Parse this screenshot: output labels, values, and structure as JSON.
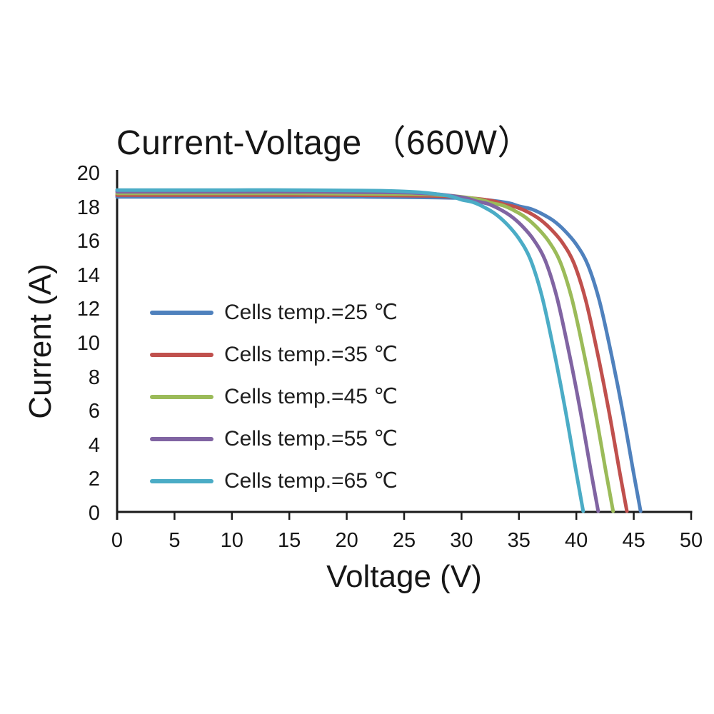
{
  "title": "Current-Voltage （660W）",
  "chart_data": {
    "type": "line",
    "title": "Current-Voltage （660W）",
    "xlabel": "Voltage (V)",
    "ylabel": "Current (A)",
    "xlim": [
      0,
      50
    ],
    "ylim": [
      0,
      20
    ],
    "x_ticks": [
      0,
      5,
      10,
      15,
      20,
      25,
      30,
      35,
      40,
      45,
      50
    ],
    "y_ticks": [
      0,
      2,
      4,
      6,
      8,
      10,
      12,
      14,
      16,
      18,
      20
    ],
    "grid": false,
    "legend_position": "inside-left",
    "axis_color": "#1a1a1a",
    "series": [
      {
        "name": "Cells temp.=25 ℃",
        "color": "#4F81BD",
        "isc_A": 18.5,
        "voc_V": 45.6,
        "points": [
          [
            0,
            18.5
          ],
          [
            5,
            18.5
          ],
          [
            10,
            18.5
          ],
          [
            15,
            18.5
          ],
          [
            20,
            18.5
          ],
          [
            25,
            18.48
          ],
          [
            28,
            18.46
          ],
          [
            30,
            18.42
          ],
          [
            32,
            18.33
          ],
          [
            34,
            18.15
          ],
          [
            35,
            17.95
          ],
          [
            36,
            17.8
          ],
          [
            37,
            17.5
          ],
          [
            38,
            17.1
          ],
          [
            39,
            16.5
          ],
          [
            40,
            15.7
          ],
          [
            41,
            14.5
          ],
          [
            42,
            12.4
          ],
          [
            43,
            9.4
          ],
          [
            44,
            6.0
          ],
          [
            45,
            2.2
          ],
          [
            45.6,
            0
          ]
        ]
      },
      {
        "name": "Cells temp.=35 ℃",
        "color": "#C0504D",
        "isc_A": 18.6,
        "voc_V": 44.4,
        "points": [
          [
            0,
            18.6
          ],
          [
            5,
            18.6
          ],
          [
            10,
            18.6
          ],
          [
            15,
            18.6
          ],
          [
            20,
            18.6
          ],
          [
            24,
            18.58
          ],
          [
            26.8,
            18.56
          ],
          [
            28.8,
            18.52
          ],
          [
            30.8,
            18.43
          ],
          [
            32.8,
            18.25
          ],
          [
            33.8,
            18.04
          ],
          [
            34.8,
            17.89
          ],
          [
            35.8,
            17.6
          ],
          [
            36.8,
            17.19
          ],
          [
            37.8,
            16.59
          ],
          [
            38.8,
            15.79
          ],
          [
            39.8,
            14.58
          ],
          [
            40.8,
            12.46
          ],
          [
            41.8,
            9.45
          ],
          [
            42.8,
            6.03
          ],
          [
            43.8,
            2.21
          ],
          [
            44.4,
            0
          ]
        ]
      },
      {
        "name": "Cells temp.=45 ℃",
        "color": "#9BBB59",
        "isc_A": 18.7,
        "voc_V": 43.2,
        "points": [
          [
            0,
            18.7
          ],
          [
            5,
            18.7
          ],
          [
            10,
            18.7
          ],
          [
            15,
            18.7
          ],
          [
            20,
            18.68
          ],
          [
            23,
            18.67
          ],
          [
            25.6,
            18.66
          ],
          [
            27.6,
            18.62
          ],
          [
            29.6,
            18.53
          ],
          [
            31.6,
            18.34
          ],
          [
            32.6,
            18.14
          ],
          [
            33.6,
            17.99
          ],
          [
            34.6,
            17.69
          ],
          [
            35.6,
            17.28
          ],
          [
            36.6,
            16.68
          ],
          [
            37.6,
            15.88
          ],
          [
            38.6,
            14.66
          ],
          [
            39.6,
            12.53
          ],
          [
            40.6,
            9.5
          ],
          [
            41.6,
            6.06
          ],
          [
            42.6,
            2.23
          ],
          [
            43.2,
            0
          ]
        ]
      },
      {
        "name": "Cells temp.=55 ℃",
        "color": "#8064A2",
        "isc_A": 18.8,
        "voc_V": 41.9,
        "points": [
          [
            0,
            18.8
          ],
          [
            5,
            18.8
          ],
          [
            10,
            18.8
          ],
          [
            15,
            18.8
          ],
          [
            20,
            18.78
          ],
          [
            22,
            18.77
          ],
          [
            24.3,
            18.76
          ],
          [
            26.3,
            18.72
          ],
          [
            28.3,
            18.63
          ],
          [
            30.3,
            18.44
          ],
          [
            31.3,
            18.24
          ],
          [
            32.3,
            18.09
          ],
          [
            33.3,
            17.78
          ],
          [
            34.3,
            17.37
          ],
          [
            35.3,
            16.77
          ],
          [
            36.3,
            15.96
          ],
          [
            37.3,
            14.74
          ],
          [
            38.3,
            12.6
          ],
          [
            39.3,
            9.55
          ],
          [
            40.3,
            6.09
          ],
          [
            41.3,
            2.24
          ],
          [
            41.9,
            0
          ]
        ]
      },
      {
        "name": "Cells temp.=65 ℃",
        "color": "#4BACC6",
        "isc_A": 18.9,
        "voc_V": 40.6,
        "points": [
          [
            0,
            18.9
          ],
          [
            5,
            18.9
          ],
          [
            10,
            18.9
          ],
          [
            15,
            18.9
          ],
          [
            20,
            18.88
          ],
          [
            23,
            18.86
          ],
          [
            25,
            18.82
          ],
          [
            27,
            18.73
          ],
          [
            29,
            18.54
          ],
          [
            30,
            18.33
          ],
          [
            31,
            18.18
          ],
          [
            32,
            17.88
          ],
          [
            33,
            17.47
          ],
          [
            34,
            16.86
          ],
          [
            35,
            16.04
          ],
          [
            36,
            14.82
          ],
          [
            37,
            12.66
          ],
          [
            38,
            9.6
          ],
          [
            39,
            6.12
          ],
          [
            40,
            2.25
          ],
          [
            40.6,
            0
          ]
        ]
      }
    ]
  }
}
